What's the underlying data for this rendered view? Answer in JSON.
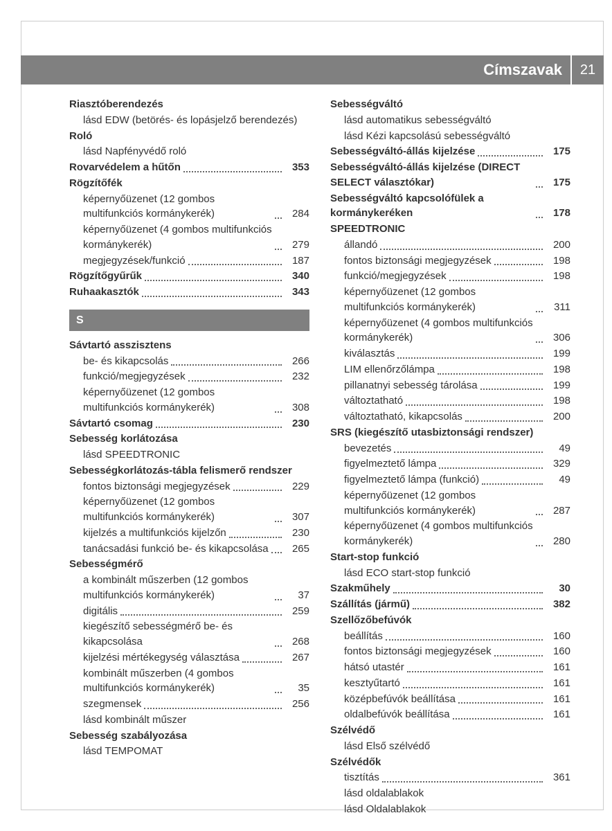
{
  "header": {
    "title": "Címszavak",
    "page": "21"
  },
  "sectionLetter": "S",
  "left": [
    {
      "t": "top",
      "label": "Riasztóberendezés"
    },
    {
      "t": "sub",
      "label": "lásd EDW (betörés- és lopásjelző berendezés)"
    },
    {
      "t": "top",
      "label": "Roló"
    },
    {
      "t": "sub",
      "label": "lásd Napfényvédő roló"
    },
    {
      "t": "top",
      "label": "Rovarvédelem a hűtőn",
      "page": "353"
    },
    {
      "t": "top",
      "label": "Rögzítőfék"
    },
    {
      "t": "sub",
      "label": "képernyőüzenet (12 gombos multifunkciós kormánykerék)",
      "page": "284"
    },
    {
      "t": "sub",
      "label": "képernyőüzenet (4 gombos multifunkciós kormánykerék)",
      "page": "279"
    },
    {
      "t": "sub",
      "label": "megjegyzések/funkció",
      "page": "187"
    },
    {
      "t": "top",
      "label": "Rögzítőgyűrűk",
      "page": "340"
    },
    {
      "t": "top",
      "label": "Ruhaakasztók",
      "page": "343"
    },
    {
      "t": "letter"
    },
    {
      "t": "top",
      "label": "Sávtartó asszisztens"
    },
    {
      "t": "sub",
      "label": "be- és kikapcsolás",
      "page": "266"
    },
    {
      "t": "sub",
      "label": "funkció/megjegyzések",
      "page": "232"
    },
    {
      "t": "sub",
      "label": "képernyőüzenet (12 gombos multifunkciós kormánykerék)",
      "page": "308"
    },
    {
      "t": "top",
      "label": "Sávtartó csomag",
      "page": "230"
    },
    {
      "t": "top",
      "label": "Sebesség korlátozása"
    },
    {
      "t": "sub",
      "label": "lásd SPEEDTRONIC"
    },
    {
      "t": "top",
      "label": "Sebességkorlátozás-tábla felismerő rendszer"
    },
    {
      "t": "sub",
      "label": "fontos biztonsági megjegyzések",
      "page": "229"
    },
    {
      "t": "sub",
      "label": "képernyőüzenet (12 gombos multifunkciós kormánykerék)",
      "page": "307"
    },
    {
      "t": "sub",
      "label": "kijelzés a multifunkciós kijelzőn",
      "page": "230"
    },
    {
      "t": "sub",
      "label": "tanácsadási funkció be- és kikapcsolása",
      "page": "265"
    },
    {
      "t": "top",
      "label": "Sebességmérő"
    },
    {
      "t": "sub",
      "label": "a kombinált műszerben (12 gombos multifunkciós kormánykerék)",
      "page": "37"
    },
    {
      "t": "sub",
      "label": "digitális",
      "page": "259"
    },
    {
      "t": "sub",
      "label": "kiegészítő sebességmérő be- és kikapcsolása",
      "page": "268"
    },
    {
      "t": "sub",
      "label": "kijelzési mértékegység választása",
      "page": "267"
    },
    {
      "t": "sub",
      "label": "kombinált műszerben (4 gombos multifunkciós kormánykerék)",
      "page": "35"
    },
    {
      "t": "sub",
      "label": "szegmensek",
      "page": "256"
    },
    {
      "t": "sub",
      "label": "lásd kombinált műszer"
    },
    {
      "t": "top",
      "label": "Sebesség szabályozása"
    },
    {
      "t": "sub",
      "label": "lásd TEMPOMAT"
    }
  ],
  "right": [
    {
      "t": "top",
      "label": "Sebességváltó"
    },
    {
      "t": "sub",
      "label": "lásd automatikus sebességváltó"
    },
    {
      "t": "sub",
      "label": "lásd Kézi kapcsolású sebességváltó"
    },
    {
      "t": "top",
      "label": "Sebességváltó-állás kijelzése",
      "page": "175"
    },
    {
      "t": "top",
      "label": "Sebességváltó-állás kijelzése (DIRECT SELECT választókar)",
      "page": "175"
    },
    {
      "t": "top",
      "label": "Sebességváltó kapcsolófülek a kormánykeréken",
      "page": "178"
    },
    {
      "t": "top",
      "label": "SPEEDTRONIC"
    },
    {
      "t": "sub",
      "label": "állandó",
      "page": "200"
    },
    {
      "t": "sub",
      "label": "fontos biztonsági megjegyzések",
      "page": "198"
    },
    {
      "t": "sub",
      "label": "funkció/megjegyzések",
      "page": "198"
    },
    {
      "t": "sub",
      "label": "képernyőüzenet (12 gombos multifunkciós kormánykerék)",
      "page": "311"
    },
    {
      "t": "sub",
      "label": "képernyőüzenet (4 gombos multifunkciós kormánykerék)",
      "page": "306"
    },
    {
      "t": "sub",
      "label": "kiválasztás",
      "page": "199"
    },
    {
      "t": "sub",
      "label": "LIM ellenőrzőlámpa",
      "page": "198"
    },
    {
      "t": "sub",
      "label": "pillanatnyi sebesség tárolása",
      "page": "199"
    },
    {
      "t": "sub",
      "label": "változtatható",
      "page": "198"
    },
    {
      "t": "sub",
      "label": "változtatható, kikapcsolás",
      "page": "200"
    },
    {
      "t": "top",
      "label": "SRS (kiegészítő utasbiztonsági rendszer)"
    },
    {
      "t": "sub",
      "label": "bevezetés",
      "page": "49"
    },
    {
      "t": "sub",
      "label": "figyelmeztető lámpa",
      "page": "329"
    },
    {
      "t": "sub",
      "label": "figyelmeztető lámpa (funkció)",
      "page": "49"
    },
    {
      "t": "sub",
      "label": "képernyőüzenet (12 gombos multifunkciós kormánykerék)",
      "page": "287"
    },
    {
      "t": "sub",
      "label": "képernyőüzenet (4 gombos multifunkciós kormánykerék)",
      "page": "280"
    },
    {
      "t": "top",
      "label": "Start-stop funkció"
    },
    {
      "t": "sub",
      "label": "lásd ECO start-stop funkció"
    },
    {
      "t": "top",
      "label": "Szakműhely",
      "page": "30"
    },
    {
      "t": "top",
      "label": "Szállítás (jármű)",
      "page": "382"
    },
    {
      "t": "top",
      "label": "Szellőzőbefúvók"
    },
    {
      "t": "sub",
      "label": "beállítás",
      "page": "160"
    },
    {
      "t": "sub",
      "label": "fontos biztonsági megjegyzések",
      "page": "160"
    },
    {
      "t": "sub",
      "label": "hátsó utastér",
      "page": "161"
    },
    {
      "t": "sub",
      "label": "kesztyűtartó",
      "page": "161"
    },
    {
      "t": "sub",
      "label": "középbefúvók beállítása",
      "page": "161"
    },
    {
      "t": "sub",
      "label": "oldalbefúvók beállítása",
      "page": "161"
    },
    {
      "t": "top",
      "label": "Szélvédő"
    },
    {
      "t": "sub",
      "label": "lásd Első szélvédő"
    },
    {
      "t": "top",
      "label": "Szélvédők"
    },
    {
      "t": "sub",
      "label": "tisztítás",
      "page": "361"
    },
    {
      "t": "sub",
      "label": "lásd oldalablakok"
    },
    {
      "t": "sub",
      "label": "lásd Oldalablakok"
    }
  ]
}
